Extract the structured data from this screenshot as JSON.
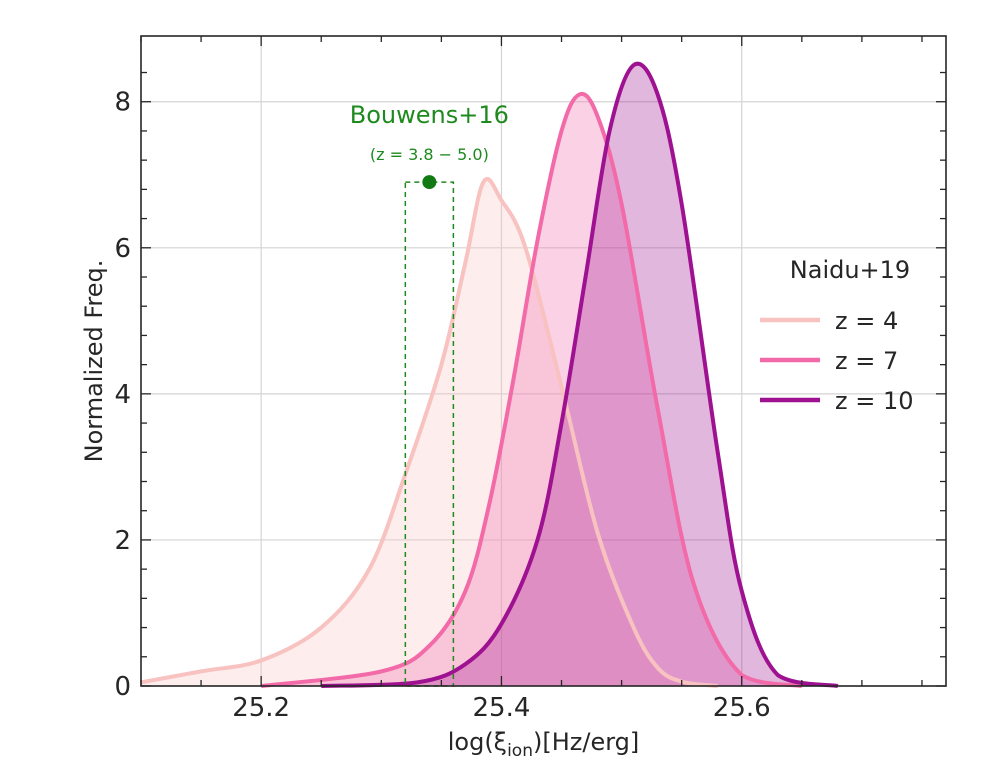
{
  "chart_data": {
    "type": "area",
    "title": "",
    "xlabel_main": "log(ξ",
    "xlabel_sub": "ion",
    "xlabel_tail": ")[Hz/erg]",
    "ylabel": "Normalized Freq.",
    "xlim": [
      25.1,
      25.77
    ],
    "ylim": [
      0,
      8.9
    ],
    "xticks": [
      25.2,
      25.4,
      25.6
    ],
    "xtick_labels": [
      "25.2",
      "25.4",
      "25.6"
    ],
    "yticks": [
      0,
      2,
      4,
      6,
      8
    ],
    "ytick_labels": [
      "0",
      "2",
      "4",
      "6",
      "8"
    ],
    "grid": true,
    "legend_title": "Naidu+19",
    "legend_position": "right",
    "series": [
      {
        "name": "z = 4",
        "color": "#f7c2c0",
        "x": [
          25.1,
          25.15,
          25.2,
          25.25,
          25.29,
          25.32,
          25.35,
          25.37,
          25.385,
          25.4,
          25.42,
          25.45,
          25.48,
          25.51,
          25.53,
          25.55,
          25.58
        ],
        "y": [
          0.05,
          0.2,
          0.35,
          0.8,
          1.6,
          2.9,
          4.4,
          5.8,
          6.9,
          6.65,
          6.0,
          4.1,
          2.1,
          0.8,
          0.25,
          0.06,
          0.0
        ]
      },
      {
        "name": "z = 7",
        "color": "#f26aa8",
        "x": [
          25.2,
          25.3,
          25.34,
          25.37,
          25.39,
          25.41,
          25.43,
          25.45,
          25.465,
          25.48,
          25.5,
          25.53,
          25.56,
          25.6,
          25.65
        ],
        "y": [
          0.0,
          0.2,
          0.55,
          1.3,
          2.5,
          4.2,
          6.1,
          7.6,
          8.1,
          7.8,
          6.6,
          3.8,
          1.4,
          0.15,
          0.0
        ]
      },
      {
        "name": "z = 10",
        "color": "#9e1190",
        "x": [
          25.25,
          25.33,
          25.37,
          25.4,
          25.43,
          25.45,
          25.47,
          25.49,
          25.51,
          25.53,
          25.55,
          25.58,
          25.6,
          25.63,
          25.68
        ],
        "y": [
          0.0,
          0.05,
          0.3,
          0.85,
          2.0,
          3.6,
          5.6,
          7.6,
          8.5,
          8.1,
          6.6,
          3.2,
          1.3,
          0.15,
          0.0
        ]
      }
    ],
    "annotation": {
      "label": "Bouwens+16",
      "sublabel": "(z = 3.8 − 5.0)",
      "color": "#1e8a1e",
      "point": {
        "x": 25.34,
        "y": 6.9
      },
      "x_range": [
        25.32,
        25.36
      ]
    }
  }
}
